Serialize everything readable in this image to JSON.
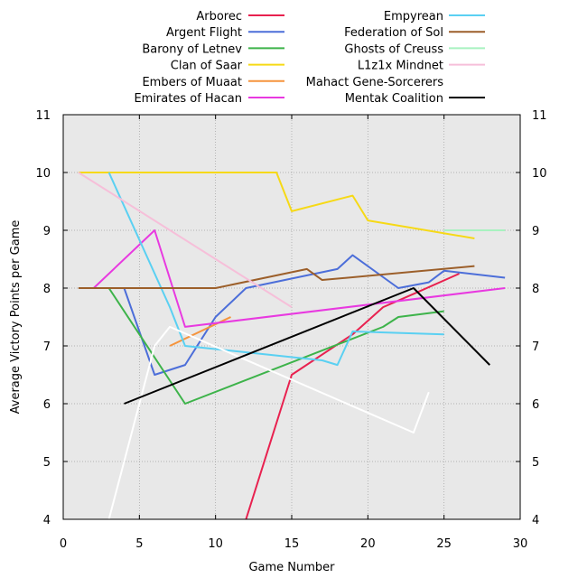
{
  "chart_data": {
    "type": "line",
    "title": "",
    "xlabel": "Game Number",
    "ylabel": "Average Victory Points per Game",
    "xlim": [
      0,
      30
    ],
    "ylim": [
      4,
      11
    ],
    "xticks": [
      0,
      5,
      10,
      15,
      20,
      25,
      30
    ],
    "yticks": [
      4,
      5,
      6,
      7,
      8,
      9,
      10,
      11
    ],
    "grid": true,
    "legend_position": "top",
    "plot_background": "#e8e8e8",
    "series": [
      {
        "name": "Arborec",
        "color": "#e8214f",
        "x": [
          12,
          15,
          19,
          21,
          23,
          26
        ],
        "y": [
          4,
          6.5,
          7.2,
          7.67,
          7.9,
          8.25
        ]
      },
      {
        "name": "Argent Flight",
        "color": "#4c6ed9",
        "x": [
          4,
          6,
          8,
          10,
          12,
          18,
          19,
          22,
          24,
          25,
          29
        ],
        "y": [
          8,
          6.5,
          6.67,
          7.5,
          8,
          8.33,
          8.57,
          8,
          8.1,
          8.3,
          8.18
        ]
      },
      {
        "name": "Barony of Letnev",
        "color": "#3db34a",
        "x": [
          3,
          8,
          21,
          22,
          25
        ],
        "y": [
          8,
          6,
          7.33,
          7.5,
          7.6
        ]
      },
      {
        "name": "Clan of Saar",
        "color": "#f6d916",
        "x": [
          1,
          14,
          15,
          19,
          20,
          27
        ],
        "y": [
          10,
          10,
          9.33,
          9.6,
          9.17,
          8.86
        ]
      },
      {
        "name": "Embers of Muaat",
        "color": "#f5943d",
        "x": [
          7,
          11
        ],
        "y": [
          7,
          7.5
        ]
      },
      {
        "name": "Emirates of Hacan",
        "color": "#e839e0",
        "x": [
          2,
          6,
          8,
          29
        ],
        "y": [
          8,
          9,
          7.33,
          8
        ]
      },
      {
        "name": "Empyrean",
        "color": "#5ad0f2",
        "x": [
          3,
          7,
          8,
          17,
          18,
          19,
          25
        ],
        "y": [
          10,
          7.67,
          7,
          6.75,
          6.67,
          7.25,
          7.2
        ]
      },
      {
        "name": "Federation of Sol",
        "color": "#9c5f2a",
        "x": [
          1,
          10,
          16,
          17,
          27
        ],
        "y": [
          8,
          8,
          8.33,
          8.14,
          8.38
        ]
      },
      {
        "name": "Ghosts of Creuss",
        "color": "#a8f2c0",
        "x": [
          25,
          29
        ],
        "y": [
          9,
          9
        ]
      },
      {
        "name": "L1z1x Mindnet",
        "color": "#f6bfd9",
        "x": [
          1,
          15
        ],
        "y": [
          10,
          7.67
        ]
      },
      {
        "name": "Mahact Gene-Sorcerers",
        "color": "#ffffff",
        "x": [
          3,
          6,
          7,
          23,
          24
        ],
        "y": [
          4,
          7,
          7.33,
          5.5,
          6.2
        ]
      },
      {
        "name": "Mentak Coalition",
        "color": "#000000",
        "x": [
          4,
          23,
          28
        ],
        "y": [
          6,
          8,
          6.67
        ]
      }
    ]
  }
}
